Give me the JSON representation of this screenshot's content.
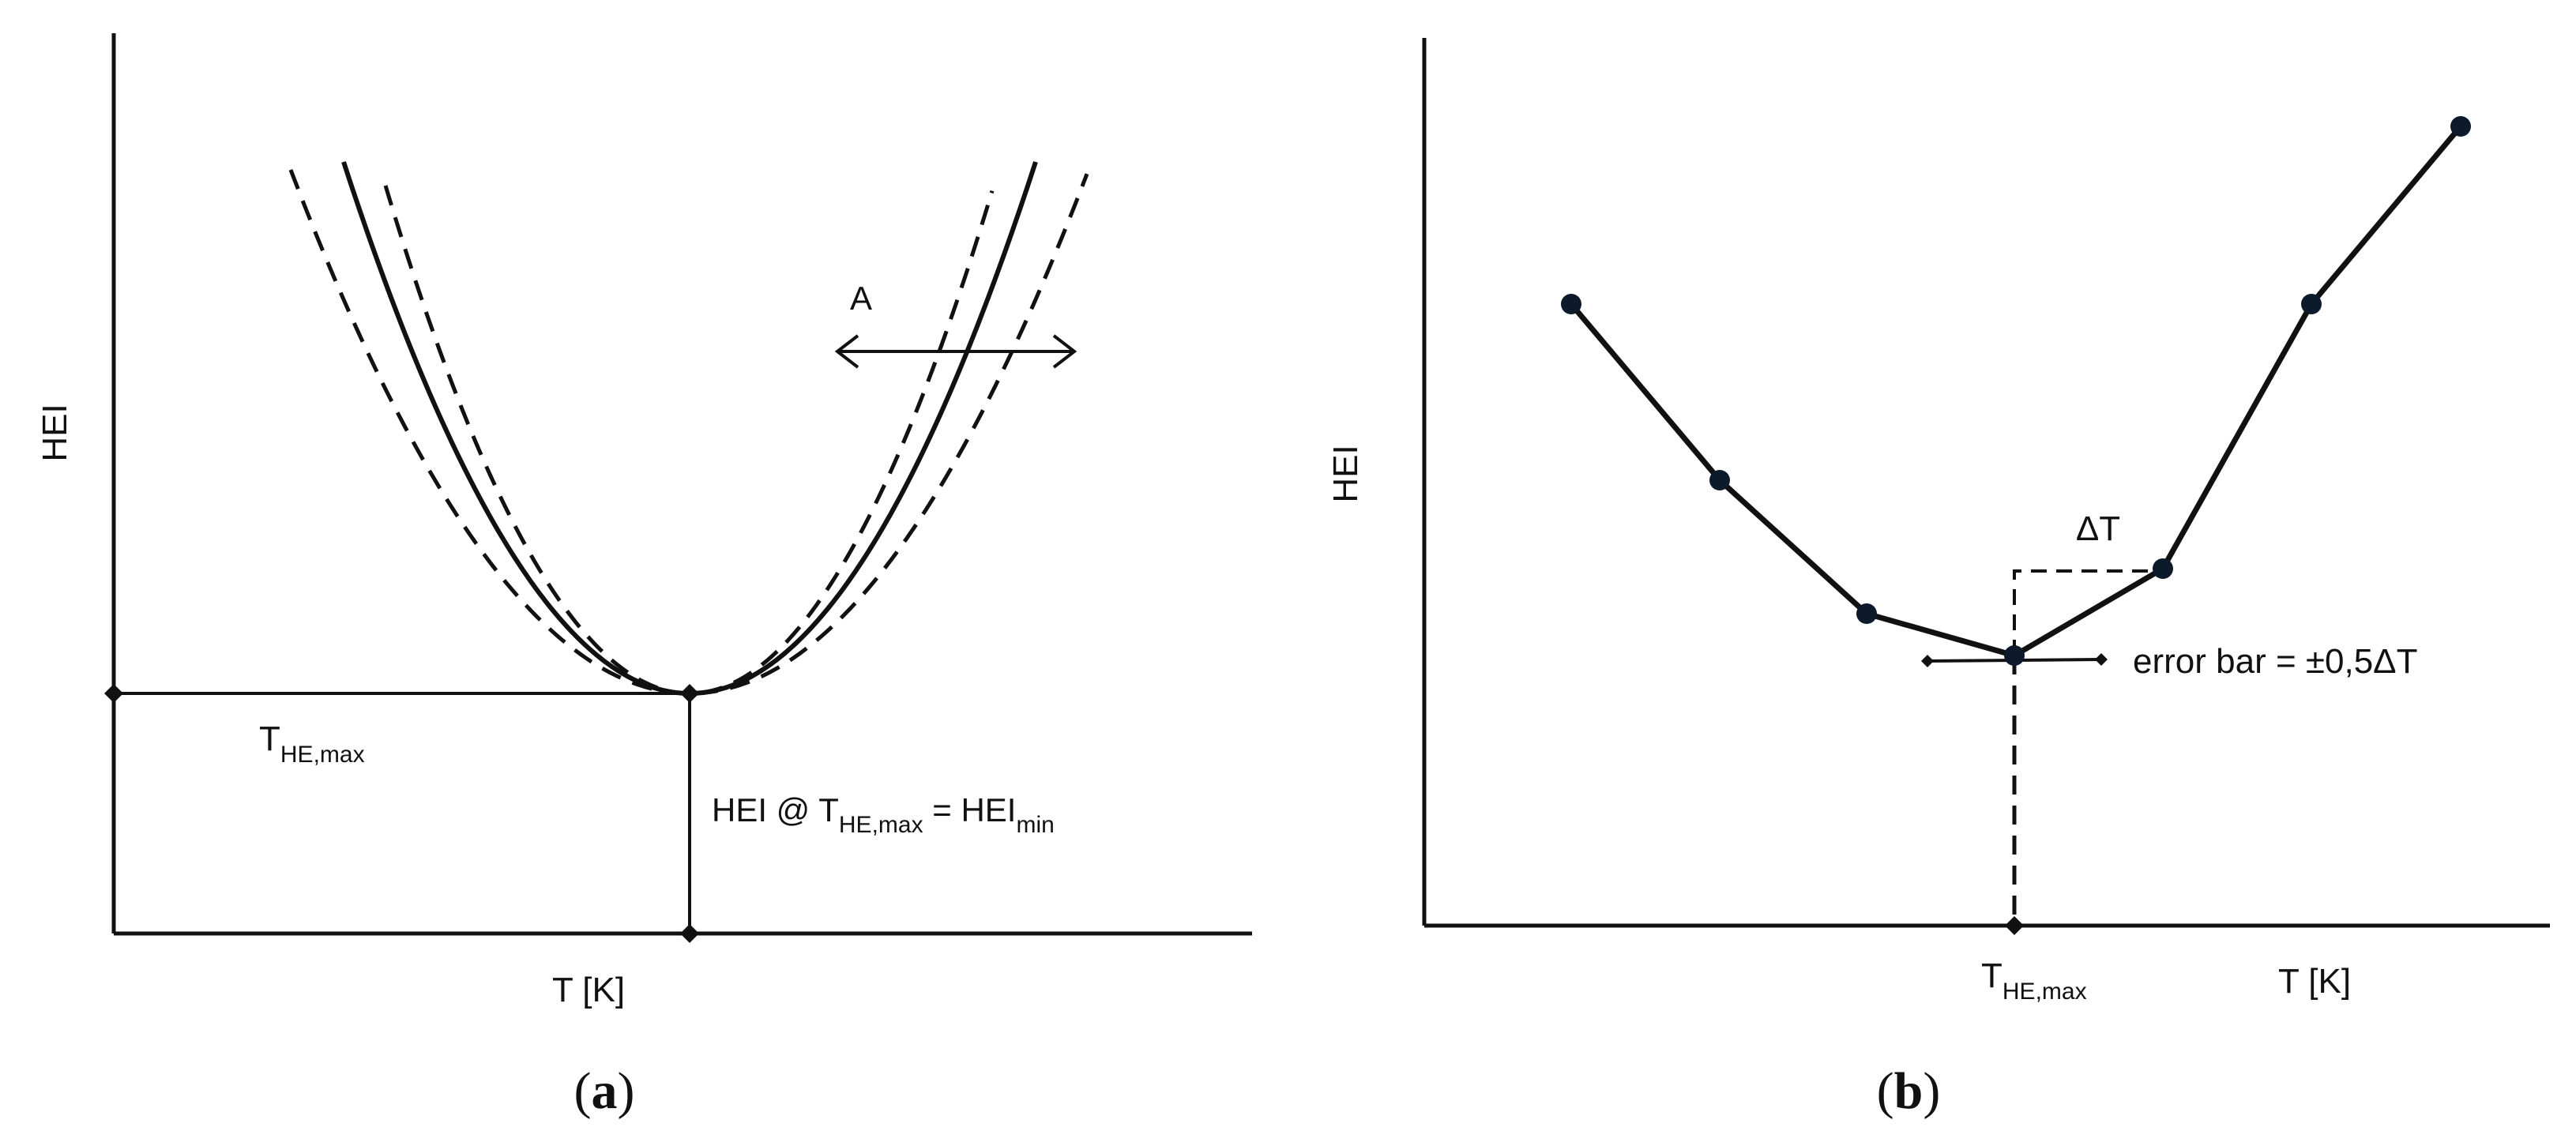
{
  "panel_a": {
    "y_axis_label": "HEI",
    "x_axis_label": "T [K]",
    "t_label_main": "T",
    "t_label_sub": "HE,max",
    "arrow_label": "A",
    "hei_label_part1": "HEI @ T",
    "hei_label_sub1": "HE,max",
    "hei_label_part2": " = HEI",
    "hei_label_sub2": "min",
    "caption_open": "(",
    "caption_letter": "a",
    "caption_close": ")"
  },
  "panel_b": {
    "y_axis_label": "HEI",
    "x_axis_label": "T [K]",
    "t_label_main": "T",
    "t_label_sub": "HE,max",
    "delta_label": "ΔT",
    "error_bar_label": "error bar = ±0,5ΔT",
    "caption_open": "(",
    "caption_letter": "b",
    "caption_close": ")"
  },
  "colors": {
    "line": "#111111",
    "marker_fill": "#0d1a2b",
    "background": "#ffffff"
  }
}
